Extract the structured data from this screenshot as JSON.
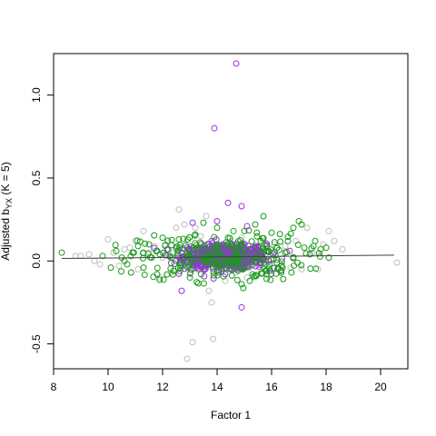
{
  "chart_data": {
    "type": "scatter",
    "xlabel": "Factor 1",
    "ylabel_main": "Adjusted b",
    "ylabel_sub": "YX",
    "ylabel_suffix": "  (K = 5)",
    "xlim": [
      8,
      21
    ],
    "ylim": [
      -0.65,
      1.25
    ],
    "x_ticks": [
      8,
      10,
      12,
      14,
      16,
      18,
      20
    ],
    "x_tick_labels": [
      "8",
      "10",
      "12",
      "14",
      "16",
      "18",
      "20"
    ],
    "y_ticks": [
      -0.5,
      0.0,
      0.5,
      1.0
    ],
    "y_tick_labels": [
      "-0.5",
      "0.0",
      "0.5",
      "1.0"
    ],
    "grid": false,
    "legend": "none",
    "series_colors": {
      "grey": "#bebebe",
      "green": "#1a9a1a",
      "purple": "#9b30e0",
      "trend": "#404040"
    },
    "trend_line": {
      "x": [
        8.3,
        20.5
      ],
      "y": [
        0.015,
        0.035
      ]
    },
    "series": [
      {
        "color_key": "grey",
        "points": [
          [
            8.8,
            0.03
          ],
          [
            9.0,
            0.03
          ],
          [
            9.3,
            0.04
          ],
          [
            9.5,
            0.0
          ],
          [
            9.7,
            -0.02
          ],
          [
            10.0,
            0.13
          ],
          [
            10.2,
            0.05
          ],
          [
            10.4,
            -0.03
          ],
          [
            10.6,
            0.07
          ],
          [
            10.8,
            0.08
          ],
          [
            11.0,
            0.12
          ],
          [
            11.1,
            -0.05
          ],
          [
            11.3,
            0.18
          ],
          [
            11.5,
            0.05
          ],
          [
            11.7,
            0.09
          ],
          [
            11.9,
            -0.1
          ],
          [
            12.1,
            0.1
          ],
          [
            12.3,
            -0.07
          ],
          [
            12.5,
            0.2
          ],
          [
            12.6,
            0.31
          ],
          [
            12.8,
            0.22
          ],
          [
            13.0,
            -0.08
          ],
          [
            13.2,
            0.2
          ],
          [
            13.4,
            0.15
          ],
          [
            13.6,
            0.27
          ],
          [
            13.7,
            -0.18
          ],
          [
            13.9,
            0.12
          ],
          [
            14.1,
            0.0
          ],
          [
            14.3,
            -0.12
          ],
          [
            14.5,
            0.12
          ],
          [
            14.7,
            -0.07
          ],
          [
            14.9,
            0.14
          ],
          [
            15.1,
            -0.1
          ],
          [
            15.3,
            0.06
          ],
          [
            15.5,
            -0.08
          ],
          [
            15.7,
            0.12
          ],
          [
            15.9,
            -0.06
          ],
          [
            16.1,
            0.1
          ],
          [
            16.3,
            -0.05
          ],
          [
            16.5,
            0.09
          ],
          [
            16.7,
            -0.04
          ],
          [
            16.9,
            0.12
          ],
          [
            17.1,
            -0.05
          ],
          [
            17.3,
            0.2
          ],
          [
            17.5,
            0.05
          ],
          [
            17.7,
            -0.05
          ],
          [
            17.9,
            0.1
          ],
          [
            18.1,
            0.18
          ],
          [
            18.3,
            0.12
          ],
          [
            18.6,
            0.07
          ],
          [
            20.6,
            -0.01
          ],
          [
            13.8,
            -0.25
          ],
          [
            12.9,
            -0.59
          ],
          [
            13.1,
            -0.49
          ],
          [
            13.85,
            -0.47
          ],
          [
            12.0,
            0.02
          ],
          [
            12.4,
            0.05
          ],
          [
            14.8,
            -0.02
          ],
          [
            15.6,
            0.03
          ],
          [
            16.8,
            0.02
          ]
        ]
      },
      {
        "color_key": "green",
        "points": [
          [
            8.3,
            0.05
          ],
          [
            9.8,
            0.03
          ],
          [
            10.1,
            -0.04
          ],
          [
            10.3,
            0.06
          ],
          [
            10.5,
            0.02
          ],
          [
            10.7,
            -0.02
          ],
          [
            10.9,
            0.05
          ],
          [
            11.1,
            0.09
          ],
          [
            11.3,
            -0.04
          ],
          [
            11.5,
            0.1
          ],
          [
            11.6,
            0.02
          ],
          [
            11.8,
            -0.08
          ],
          [
            12.0,
            0.14
          ],
          [
            12.2,
            0.07
          ],
          [
            12.4,
            -0.06
          ],
          [
            12.6,
            0.13
          ],
          [
            12.8,
            0.02
          ],
          [
            13.0,
            -0.1
          ],
          [
            13.2,
            0.16
          ],
          [
            13.5,
            0.23
          ],
          [
            13.7,
            0.1
          ],
          [
            14.4,
            0.14
          ],
          [
            14.6,
            0.18
          ],
          [
            15.0,
            0.18
          ],
          [
            15.2,
            -0.12
          ],
          [
            15.4,
            0.22
          ],
          [
            15.6,
            0.12
          ],
          [
            15.8,
            -0.06
          ],
          [
            16.0,
            0.17
          ],
          [
            16.2,
            0.08
          ],
          [
            16.4,
            -0.04
          ],
          [
            16.6,
            0.12
          ],
          [
            16.8,
            0.2
          ],
          [
            17.0,
            0.24
          ],
          [
            17.1,
            0.22
          ],
          [
            17.2,
            0.08
          ],
          [
            17.4,
            0.04
          ],
          [
            17.6,
            0.12
          ],
          [
            17.8,
            0.07
          ],
          [
            18.0,
            0.08
          ],
          [
            18.1,
            0.02
          ],
          [
            15.7,
            0.27
          ],
          [
            14.0,
            0.2
          ],
          [
            13.3,
            -0.02
          ],
          [
            12.7,
            0.05
          ],
          [
            14.9,
            -0.14
          ],
          [
            15.3,
            0.0
          ],
          [
            16.5,
            0.05
          ],
          [
            11.9,
            0.04
          ],
          [
            10.6,
            0.0
          ]
        ]
      },
      {
        "color_key": "purple",
        "points": [
          [
            14.7,
            1.19
          ],
          [
            13.9,
            0.8
          ],
          [
            14.4,
            0.35
          ],
          [
            14.9,
            0.33
          ],
          [
            15.1,
            0.21
          ],
          [
            12.7,
            -0.18
          ],
          [
            14.9,
            -0.28
          ],
          [
            14.0,
            0.24
          ],
          [
            13.1,
            0.23
          ],
          [
            14.3,
            -0.08
          ],
          [
            13.8,
            0.12
          ],
          [
            14.6,
            -0.05
          ],
          [
            15.4,
            0.09
          ],
          [
            12.9,
            0.08
          ],
          [
            13.5,
            0.07
          ],
          [
            15.0,
            0.02
          ],
          [
            14.2,
            0.1
          ],
          [
            13.3,
            0.04
          ],
          [
            15.6,
            0.05
          ],
          [
            12.5,
            0.0
          ]
        ]
      }
    ],
    "dense_core": {
      "center": [
        14.3,
        0.025
      ],
      "spread_x": 0.75,
      "spread_y": 0.03,
      "count": 700
    }
  }
}
